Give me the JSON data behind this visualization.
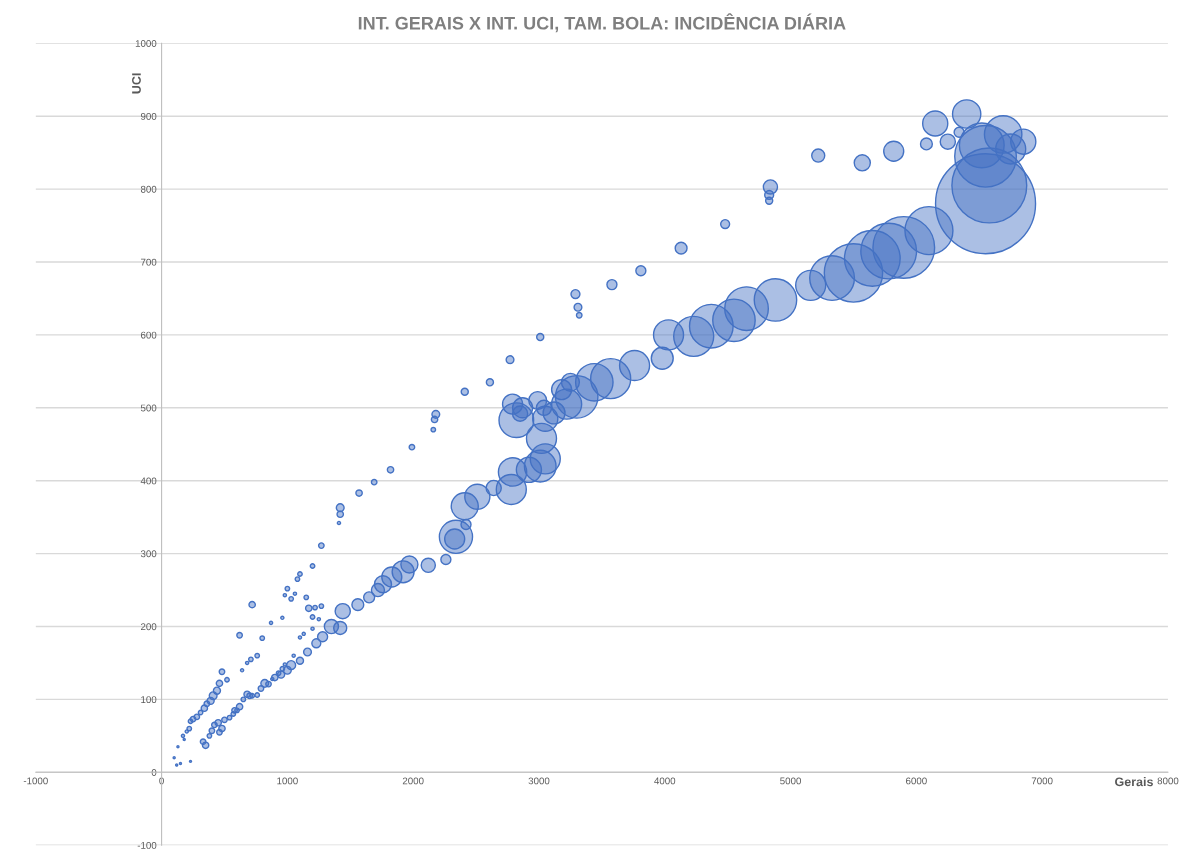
{
  "chart_data": {
    "type": "bubble",
    "title": "INT. GERAIS X INT. UCI, TAM. BOLA: INCIDÊNCIA DIÁRIA",
    "xlabel": "Gerais",
    "ylabel": "UCI",
    "xlim": [
      -1000,
      8000
    ],
    "ylim": [
      -100,
      1000
    ],
    "xticks": [
      -1000,
      0,
      1000,
      2000,
      3000,
      4000,
      5000,
      6000,
      7000,
      8000
    ],
    "yticks": [
      -100,
      0,
      100,
      200,
      300,
      400,
      500,
      600,
      700,
      800,
      900,
      1000
    ],
    "grid": "y",
    "series": [
      {
        "color": "#4472c4",
        "x": [
          6550,
          6580,
          6550,
          6520,
          6690,
          6750,
          6850,
          6400,
          6150,
          6250,
          6080,
          6340,
          5820,
          5570,
          5220,
          4840,
          4830,
          4830,
          4480,
          4130,
          3810,
          3580,
          3310,
          3290,
          3320,
          3010,
          2770,
          2610,
          2410,
          2180,
          2170,
          2160,
          1990,
          1820,
          1690,
          1570,
          1420,
          1420,
          1410,
          1270,
          6100,
          5900,
          5780,
          5650,
          5500,
          5330,
          5160,
          4880,
          4650,
          4550,
          4370,
          4230,
          4030,
          3980,
          3760,
          3570,
          3440,
          3300,
          3250,
          3180,
          3220,
          3120,
          3050,
          3040,
          2990,
          2870,
          2820,
          2850,
          2790,
          3020,
          3050,
          3010,
          2920,
          2790,
          2780,
          2640,
          2510,
          2410,
          2420,
          2340,
          2330,
          2260,
          2120,
          1970,
          1920,
          1830,
          1760,
          1720,
          1650,
          1560,
          1440,
          1420,
          1350,
          1280,
          1230,
          1160,
          1100,
          1030,
          1000,
          950,
          900,
          820,
          790,
          700,
          620,
          580,
          720,
          620,
          1200,
          1100,
          1080,
          1150,
          1170,
          1200,
          1000,
          980,
          1060,
          1030,
          960,
          870,
          800,
          760,
          710,
          680,
          640,
          480,
          520,
          460,
          440,
          410,
          390,
          360,
          340,
          310,
          280,
          250,
          230,
          220,
          200,
          170,
          180,
          130,
          100,
          150,
          230,
          120,
          350,
          330,
          380,
          400,
          420,
          450,
          480,
          500,
          460,
          540,
          570,
          600,
          650,
          680,
          720,
          760,
          850,
          880,
          930,
          960,
          980,
          1050,
          1100,
          1130,
          1200,
          1250,
          1270,
          1220
        ],
        "values": [
          780,
          805,
          845,
          860,
          875,
          855,
          865,
          903,
          890,
          865,
          862,
          878,
          852,
          836,
          846,
          803,
          792,
          784,
          752,
          719,
          688,
          669,
          638,
          656,
          627,
          597,
          566,
          535,
          522,
          491,
          484,
          470,
          446,
          415,
          398,
          383,
          363,
          354,
          342,
          311,
          743,
          720,
          715,
          705,
          685,
          678,
          668,
          648,
          636,
          620,
          612,
          598,
          600,
          568,
          558,
          540,
          535,
          515,
          535,
          525,
          505,
          493,
          485,
          500,
          510,
          500,
          483,
          492,
          505,
          458,
          430,
          420,
          415,
          412,
          388,
          390,
          378,
          365,
          340,
          323,
          320,
          292,
          284,
          285,
          275,
          268,
          258,
          250,
          240,
          230,
          221,
          198,
          200,
          186,
          177,
          165,
          153,
          147,
          140,
          134,
          130,
          122,
          115,
          105,
          90,
          85,
          230,
          188,
          283,
          272,
          265,
          240,
          225,
          213,
          252,
          243,
          245,
          238,
          212,
          205,
          184,
          160,
          155,
          150,
          140,
          138,
          127,
          122,
          112,
          105,
          98,
          94,
          88,
          82,
          76,
          73,
          70,
          60,
          56,
          50,
          45,
          35,
          20,
          12,
          15,
          10,
          37,
          42,
          50,
          57,
          65,
          68,
          60,
          72,
          55,
          75,
          80,
          85,
          100,
          107,
          105,
          106,
          121,
          128,
          136,
          142,
          148,
          160,
          185,
          190,
          197,
          210,
          228,
          226
        ],
        "sizes": [
          1,
          0.56,
          0.38,
          0.2,
          0.14,
          0.09,
          0.063,
          0.08,
          0.063,
          0.023,
          0.014,
          0.01,
          0.04,
          0.026,
          0.017,
          0.02,
          0.008,
          0.005,
          0.008,
          0.014,
          0.01,
          0.01,
          0.006,
          0.008,
          0.003,
          0.005,
          0.006,
          0.005,
          0.005,
          0.006,
          0.004,
          0.002,
          0.003,
          0.004,
          0.003,
          0.004,
          0.006,
          0.004,
          0.001,
          0.003,
          0.23,
          0.38,
          0.31,
          0.31,
          0.34,
          0.2,
          0.09,
          0.18,
          0.19,
          0.18,
          0.19,
          0.16,
          0.09,
          0.048,
          0.09,
          0.16,
          0.14,
          0.18,
          0.032,
          0.04,
          0.09,
          0.048,
          0.063,
          0.023,
          0.032,
          0.04,
          0.12,
          0.023,
          0.04,
          0.09,
          0.09,
          0.1,
          0.063,
          0.08,
          0.09,
          0.023,
          0.063,
          0.073,
          0.01,
          0.11,
          0.04,
          0.01,
          0.02,
          0.029,
          0.048,
          0.04,
          0.029,
          0.017,
          0.012,
          0.014,
          0.023,
          0.017,
          0.02,
          0.01,
          0.008,
          0.006,
          0.005,
          0.008,
          0.006,
          0.005,
          0.004,
          0.006,
          0.003,
          0.003,
          0.004,
          0.003,
          0.004,
          0.003,
          0.002,
          0.002,
          0.002,
          0.002,
          0.004,
          0.002,
          0.002,
          0.001,
          0.001,
          0.002,
          0.001,
          0.001,
          0.002,
          0.002,
          0.002,
          0.001,
          0.001,
          0.003,
          0.002,
          0.004,
          0.005,
          0.006,
          0.005,
          0.003,
          0.004,
          0.002,
          0.003,
          0.003,
          0.002,
          0.002,
          0.001,
          0.001,
          0.0004,
          0.0004,
          0.0004,
          0.0004,
          0.0004,
          0.0004,
          0.004,
          0.003,
          0.002,
          0.003,
          0.003,
          0.004,
          0.004,
          0.003,
          0.003,
          0.002,
          0.002,
          0.002,
          0.002,
          0.004,
          0.002,
          0.002,
          0.003,
          0.001,
          0.002,
          0.002,
          0.001,
          0.001,
          0.001,
          0.001,
          0.001,
          0.001,
          0.002,
          0.002
        ]
      }
    ]
  }
}
